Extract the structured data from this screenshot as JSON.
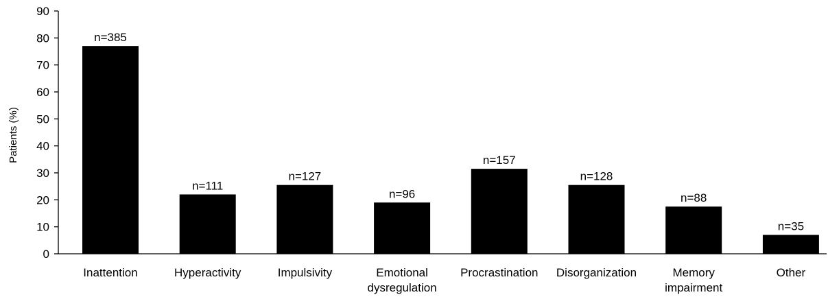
{
  "chart_data": {
    "type": "bar",
    "ylabel": "Patients (%)",
    "ylim": [
      0,
      90
    ],
    "yticks": [
      0,
      10,
      20,
      30,
      40,
      50,
      60,
      70,
      80,
      90
    ],
    "grid": false,
    "legend": "none",
    "bar_color": "#000000",
    "categories": [
      [
        "Inattention"
      ],
      [
        "Hyperactivity"
      ],
      [
        "Impulsivity"
      ],
      [
        "Emotional",
        "dysregulation"
      ],
      [
        "Procrastination"
      ],
      [
        "Disorganization"
      ],
      [
        "Memory",
        "impairment"
      ],
      [
        "Other"
      ]
    ],
    "values": [
      77,
      22,
      25.5,
      19,
      31.5,
      25.5,
      17.5,
      7
    ],
    "data_labels": [
      "n=385",
      "n=111",
      "n=127",
      "n=96",
      "n=157",
      "n=128",
      "n=88",
      "n=35"
    ]
  }
}
